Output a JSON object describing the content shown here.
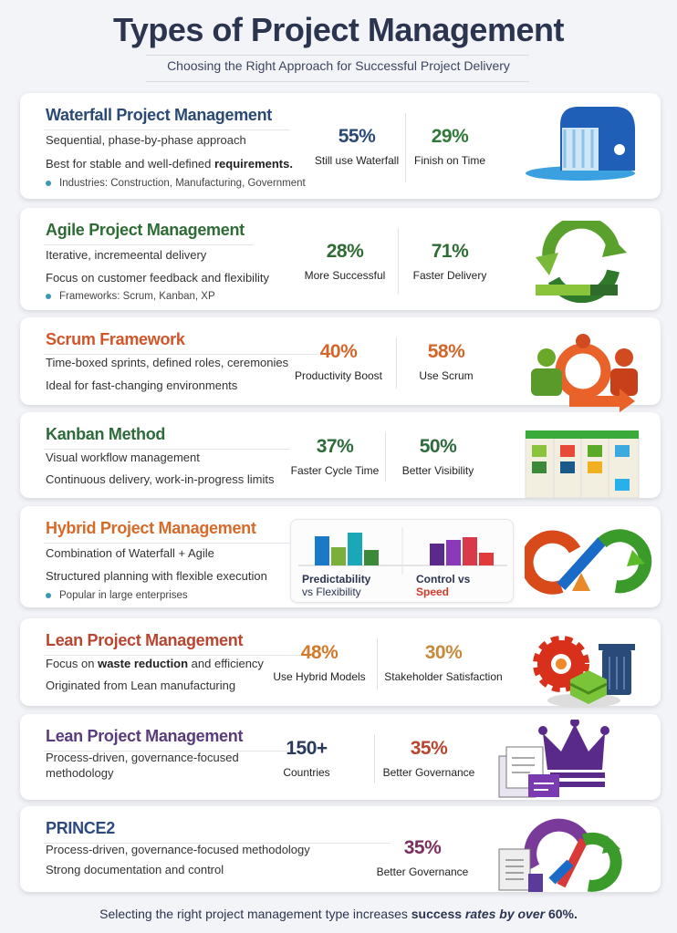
{
  "header": {
    "title": "Types of Project Management",
    "subtitle": "Choosing the Right Approach for Successful Project Delivery"
  },
  "colors": {
    "navy": "#2a4a75",
    "green": "#2f7a3a",
    "orange": "#d2612a",
    "purple": "#5a3b7d",
    "maroon": "#7a3060"
  },
  "cards": [
    {
      "title": "Waterfall Project Management",
      "title_color": "#2a4a75",
      "icon": "waterfall-icon",
      "lines": [
        [
          {
            "t": "Sequential, phase-by-phase approach"
          }
        ],
        [
          {
            "t": "Best for stable and well-defined "
          },
          {
            "t": "requirements.",
            "b": true
          }
        ]
      ],
      "bullet": "Industries: Construction, Manufacturing, Government",
      "stats": [
        {
          "value": "55%",
          "label": "Still use Waterfall",
          "color": "#2a4a75"
        },
        {
          "value": "29%",
          "label": "Finish on Time",
          "color": "#2f7a3a"
        }
      ]
    },
    {
      "title": "Agile Project Management",
      "title_color": "#2f6b35",
      "icon": "cycle-arrows-icon",
      "lines": [
        [
          {
            "t": "Iterative, incremeental delivery"
          }
        ],
        [
          {
            "t": "Focus on customer feedback and flexibility"
          }
        ]
      ],
      "bullet": "Frameworks: Scrum, Kanban, XP",
      "stats": [
        {
          "value": "28%",
          "label": "More Successful",
          "color": "#2f6b35"
        },
        {
          "value": "71%",
          "label": "Faster Delivery",
          "color": "#2f6b35"
        }
      ]
    },
    {
      "title": "Scrum Framework",
      "title_color": "#d2552a",
      "icon": "scrum-team-icon",
      "lines": [
        [
          {
            "t": "Time-boxed sprints, defined roles, ceremonies"
          }
        ],
        [
          {
            "t": "Ideal for fast-changing environments"
          }
        ]
      ],
      "stats": [
        {
          "value": "40%",
          "label": "Productivity Boost",
          "color": "#d2662a"
        },
        {
          "value": "58%",
          "label": "Use Scrum",
          "color": "#d2662a"
        }
      ]
    },
    {
      "title": "Kanban Method",
      "title_color": "#2e6b3a",
      "icon": "kanban-board-icon",
      "lines": [
        [
          {
            "t": "Visual workflow management"
          }
        ],
        [
          {
            "t": "Continuous delivery, work-in-progress limits"
          }
        ]
      ],
      "stats": [
        {
          "value": "37%",
          "label": "Faster Cycle Time",
          "color": "#2e6b3a"
        },
        {
          "value": "50%",
          "label": "Better Visibility",
          "color": "#2e6b3a"
        }
      ]
    },
    {
      "title": "Hybrid Project Management",
      "title_color": "#d86a28",
      "icon": "hybrid-loop-icon",
      "lines": [
        [
          {
            "t": "Combination of Waterfall  + Agile"
          }
        ],
        [
          {
            "t": "Structured planning with flexible execution"
          }
        ]
      ],
      "bullet": "Popular in large enterprises",
      "compare": {
        "left_label": "Predictability",
        "left_label2": "vs Flexibility",
        "right_label": "Control vs",
        "right_label2": "Speed"
      }
    },
    {
      "title": "Lean Project Management",
      "title_color": "#b8452f",
      "icon": "gear-trash-icon",
      "lines": [
        [
          {
            "t": "Focus on "
          },
          {
            "t": "waste reduction",
            "b": true
          },
          {
            "t": " and efficiency"
          }
        ],
        [
          {
            "t": "Originated from Lean manufacturing"
          }
        ]
      ],
      "stats": [
        {
          "value": "48%",
          "label": "Use Hybrid Models",
          "color": "#d27a2a"
        },
        {
          "value": "30%",
          "label": "Stakeholder Satisfaction",
          "color": "#c58a3a"
        }
      ]
    },
    {
      "title": "Lean Project Management",
      "title_color": "#5a3b7d",
      "icon": "crown-documents-icon",
      "lines": [
        [
          {
            "t": "Process-driven, governance-focused"
          }
        ],
        [
          {
            "t": "methodology"
          }
        ]
      ],
      "stats": [
        {
          "value": "150+",
          "label": "Countries",
          "color": "#2a3a5a"
        },
        {
          "value": "35%",
          "label": "Better Governance",
          "color": "#b8452f"
        }
      ]
    },
    {
      "title": "PRINCE2",
      "title_color": "#2d4a80",
      "icon": "prince2-loop-icon",
      "lines": [
        [
          {
            "t": "Process-driven, governance-focused methodology"
          }
        ],
        [
          {
            "t": "Strong documentation and control"
          }
        ]
      ],
      "stats": [
        {
          "value": "35%",
          "label": "Better Governance",
          "color": "#7a3060"
        }
      ]
    }
  ],
  "footer": {
    "pre": "Selecting the right project management type increases ",
    "b1": "success",
    "b2": " rates by over ",
    "b3": "60%."
  }
}
